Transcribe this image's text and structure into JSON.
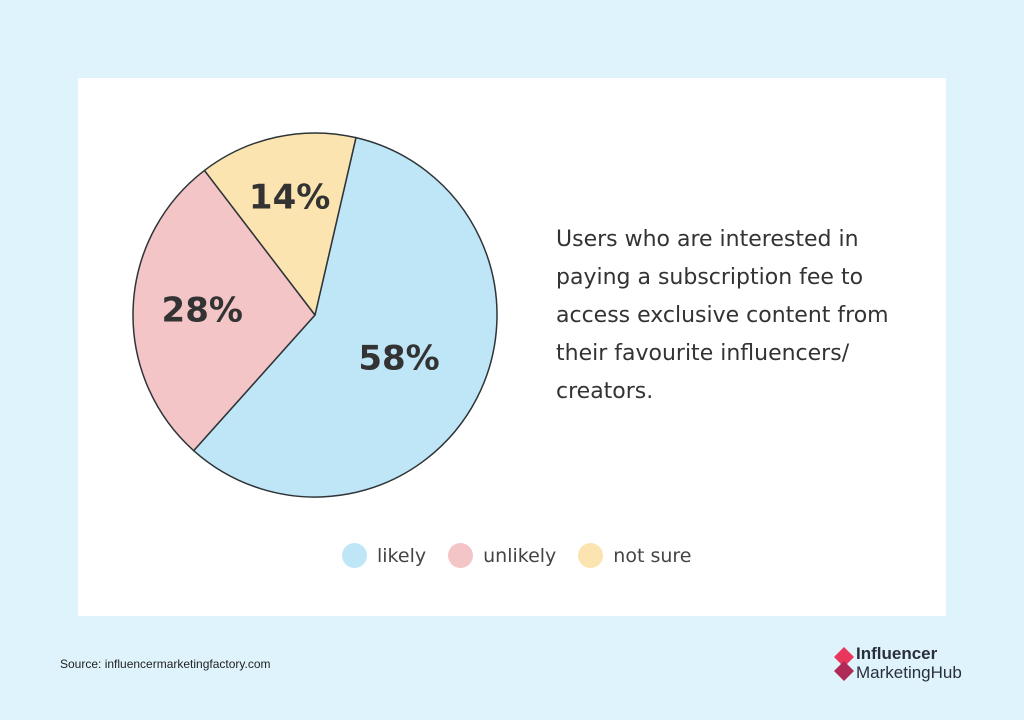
{
  "chart_data": {
    "type": "pie",
    "title": "",
    "slices": [
      {
        "label": "likely",
        "value": 58,
        "display": "58%",
        "color": "#bfe6f7"
      },
      {
        "label": "unlikely",
        "value": 28,
        "display": "28%",
        "color": "#f4c5c7"
      },
      {
        "label": "not sure",
        "value": 14,
        "display": "14%",
        "color": "#fbe4b0"
      }
    ],
    "legend": {
      "position": "bottom"
    }
  },
  "caption": "Users who are interested in paying a subscription fee to access exclusive content from their favourite influencers/ creators.",
  "source": "Source: influencermarketingfactory.com",
  "brand": {
    "line1": "Influencer",
    "line2": "MarketingHub",
    "colors": [
      "#e8365d",
      "#b02a58"
    ]
  },
  "colors": {
    "background": "#dff3fc",
    "card": "#ffffff",
    "outline": "#2e3438",
    "text": "#333333"
  }
}
